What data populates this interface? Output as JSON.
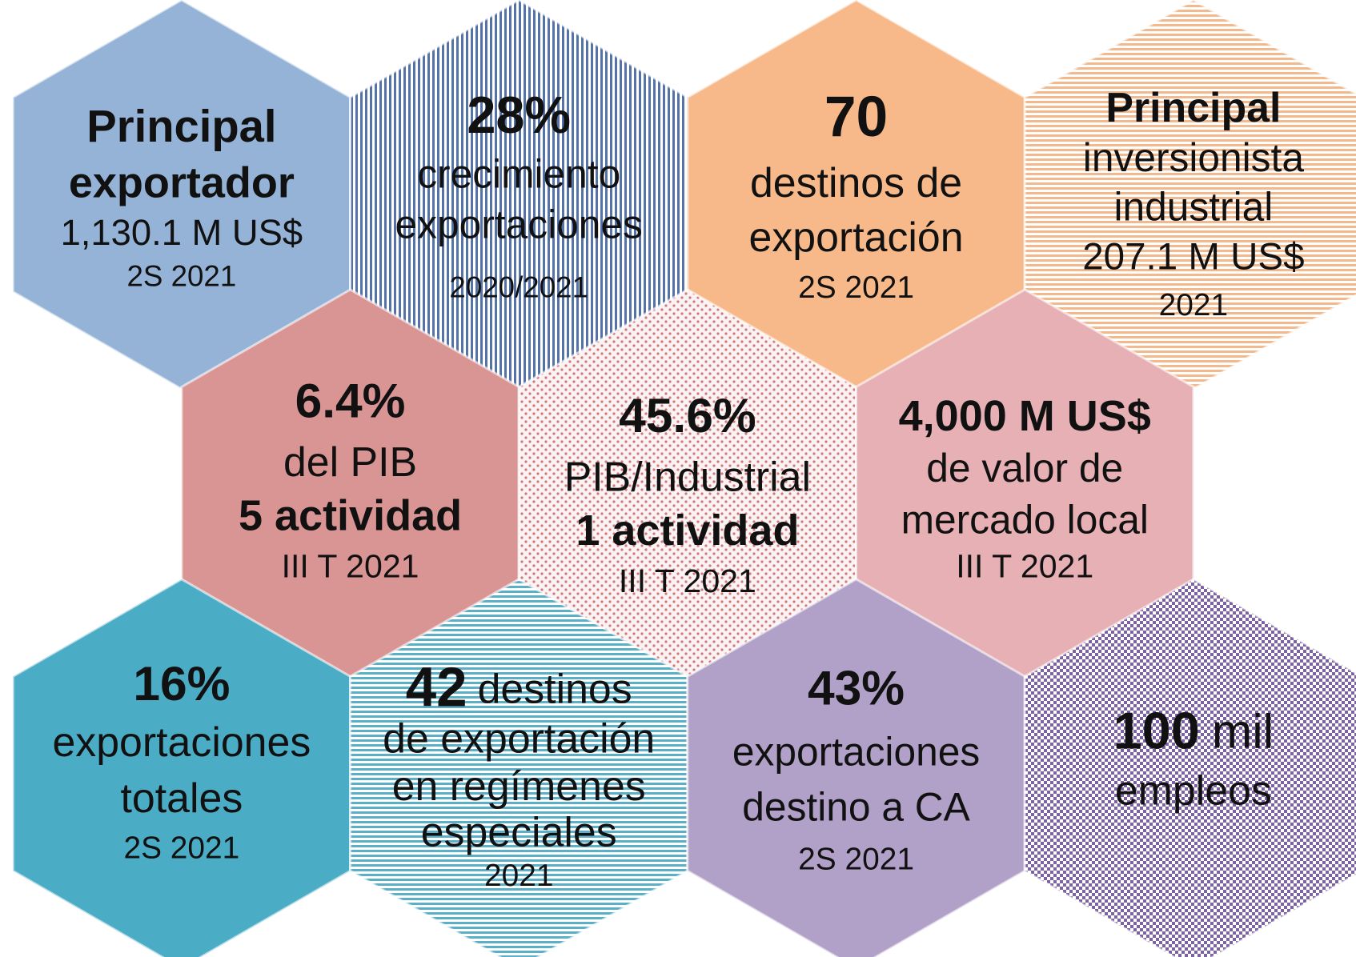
{
  "hexagons": [
    {
      "lines": [
        {
          "text": "Principal",
          "bold": true
        },
        {
          "text": "exportador",
          "bold": true
        },
        {
          "text": "1,130.1 M US$"
        },
        {
          "text": "2S 2021"
        }
      ]
    },
    {
      "lines": [
        {
          "text": "28%",
          "bold": true
        },
        {
          "text": "crecimiento"
        },
        {
          "text": "exportaciones"
        },
        {
          "text": "2020/2021"
        }
      ]
    },
    {
      "lines": [
        {
          "text": "70",
          "bold": true
        },
        {
          "text": "destinos de"
        },
        {
          "text": "exportación"
        },
        {
          "text": "2S 2021"
        }
      ]
    },
    {
      "lines": [
        {
          "text": "Principal",
          "bold": true
        },
        {
          "text": "inversionista"
        },
        {
          "text": "industrial"
        },
        {
          "text": "207.1 M US$"
        },
        {
          "text": "2021"
        }
      ]
    },
    {
      "lines": [
        {
          "text": "6.4%",
          "bold": true
        },
        {
          "text": "del PIB"
        },
        {
          "text": "5 actividad",
          "bold": true
        },
        {
          "text": "III T 2021"
        }
      ]
    },
    {
      "lines": [
        {
          "text": "45.6%",
          "bold": true
        },
        {
          "text": "PIB/Industrial"
        },
        {
          "text": "1 actividad",
          "bold": true
        },
        {
          "text": "III T 2021"
        }
      ]
    },
    {
      "lines": [
        {
          "text": "4,000 M US$",
          "bold": true
        },
        {
          "text": "de valor de"
        },
        {
          "text": "mercado local"
        },
        {
          "text": "III T 2021"
        }
      ]
    },
    {
      "lines": [
        {
          "text": "16%",
          "bold": true
        },
        {
          "text": "exportaciones"
        },
        {
          "text": "totales"
        },
        {
          "text": "2S 2021"
        }
      ]
    },
    {
      "lines": [
        {
          "strong": "42",
          "text": "destinos"
        },
        {
          "text": "de exportación"
        },
        {
          "text": "en regímenes"
        },
        {
          "text": "especiales"
        },
        {
          "text": "2021"
        }
      ]
    },
    {
      "lines": [
        {
          "text": "43%",
          "bold": true
        },
        {
          "text": "exportaciones"
        },
        {
          "text": "destino a CA"
        },
        {
          "text": "2S 2021"
        }
      ]
    },
    {
      "lines": [
        {
          "strong": "100",
          "text": "mil"
        },
        {
          "text": "empleos"
        }
      ]
    }
  ]
}
